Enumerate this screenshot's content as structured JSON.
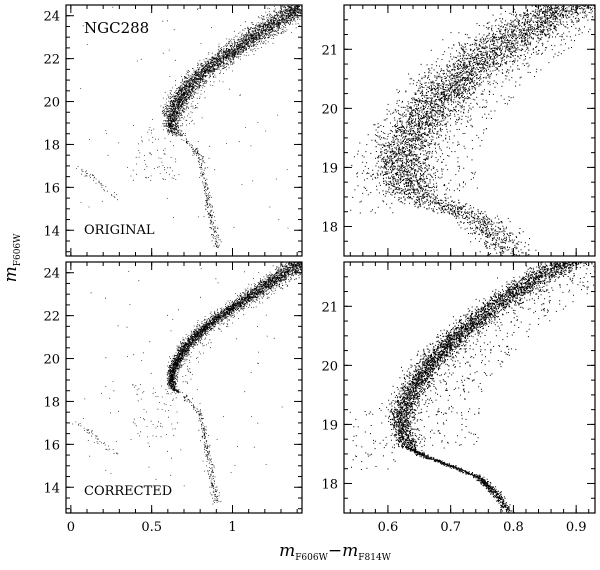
{
  "figure": {
    "ylabel_main": "m",
    "ylabel_sub": "F606W",
    "xlabel_m1": "m",
    "xlabel_sub1": "F606W",
    "xlabel_dash": "−",
    "xlabel_m2": "m",
    "xlabel_sub2": "F814W",
    "point_color": "#000000"
  },
  "chart_data": [
    {
      "type": "scatter",
      "panel": "top-left",
      "title": "NGC288",
      "annotation": "ORIGINAL",
      "xlim": [
        -0.03,
        1.43
      ],
      "ylim": [
        24.5,
        12.8
      ],
      "y_inverted": true,
      "xticks": [
        0,
        0.5,
        1
      ],
      "xticklabels_shown": false,
      "yticks": [
        14,
        16,
        18,
        20,
        22,
        24
      ],
      "yticklabels": [
        "14",
        "16",
        "18",
        "20",
        "22",
        "24"
      ],
      "scatter": "original",
      "series": [
        {
          "component": "main-sequence",
          "x": [
            0.66,
            0.69,
            0.74,
            0.82,
            0.92,
            1.05,
            1.2,
            1.32,
            1.43
          ],
          "y": [
            18.8,
            19.6,
            20.4,
            21.1,
            21.8,
            22.5,
            23.2,
            23.8,
            24.4
          ]
        },
        {
          "component": "red-giant-branch",
          "x": [
            0.72,
            0.75,
            0.77,
            0.79,
            0.81,
            0.84,
            0.88
          ],
          "y": [
            18.3,
            17.5,
            17.0,
            16.4,
            15.6,
            14.8,
            13.8
          ]
        },
        {
          "component": "horizontal-branch",
          "x": [
            0.02,
            0.08,
            0.15,
            0.22,
            0.28
          ],
          "y": [
            17.1,
            16.6,
            16.2,
            15.8,
            15.5
          ]
        }
      ]
    },
    {
      "type": "scatter",
      "panel": "top-right",
      "xlim": [
        0.53,
        0.93
      ],
      "ylim": [
        21.75,
        17.5
      ],
      "y_inverted": true,
      "xticks": [
        0.6,
        0.7,
        0.8,
        0.9
      ],
      "xticklabels_shown": false,
      "yticks": [
        18,
        19,
        20,
        21
      ],
      "yticklabels": [
        "18",
        "19",
        "20",
        "21"
      ],
      "scatter": "original-zoom"
    },
    {
      "type": "scatter",
      "panel": "bottom-left",
      "annotation": "CORRECTED",
      "xlim": [
        -0.03,
        1.43
      ],
      "ylim": [
        24.5,
        12.8
      ],
      "y_inverted": true,
      "xticks": [
        0,
        0.5,
        1
      ],
      "xticklabels": [
        "0",
        "0.5",
        "1"
      ],
      "yticks": [
        14,
        16,
        18,
        20,
        22,
        24
      ],
      "yticklabels": [
        "14",
        "16",
        "18",
        "20",
        "22",
        "24"
      ],
      "scatter": "corrected"
    },
    {
      "type": "scatter",
      "panel": "bottom-right",
      "xlim": [
        0.53,
        0.93
      ],
      "ylim": [
        21.75,
        17.5
      ],
      "y_inverted": true,
      "xticks": [
        0.6,
        0.7,
        0.8,
        0.9
      ],
      "xticklabels": [
        "0.6",
        "0.7",
        "0.8",
        "0.9"
      ],
      "yticks": [
        18,
        19,
        20,
        21
      ],
      "yticklabels": [
        "18",
        "19",
        "20",
        "21"
      ],
      "scatter": "corrected-zoom"
    }
  ]
}
